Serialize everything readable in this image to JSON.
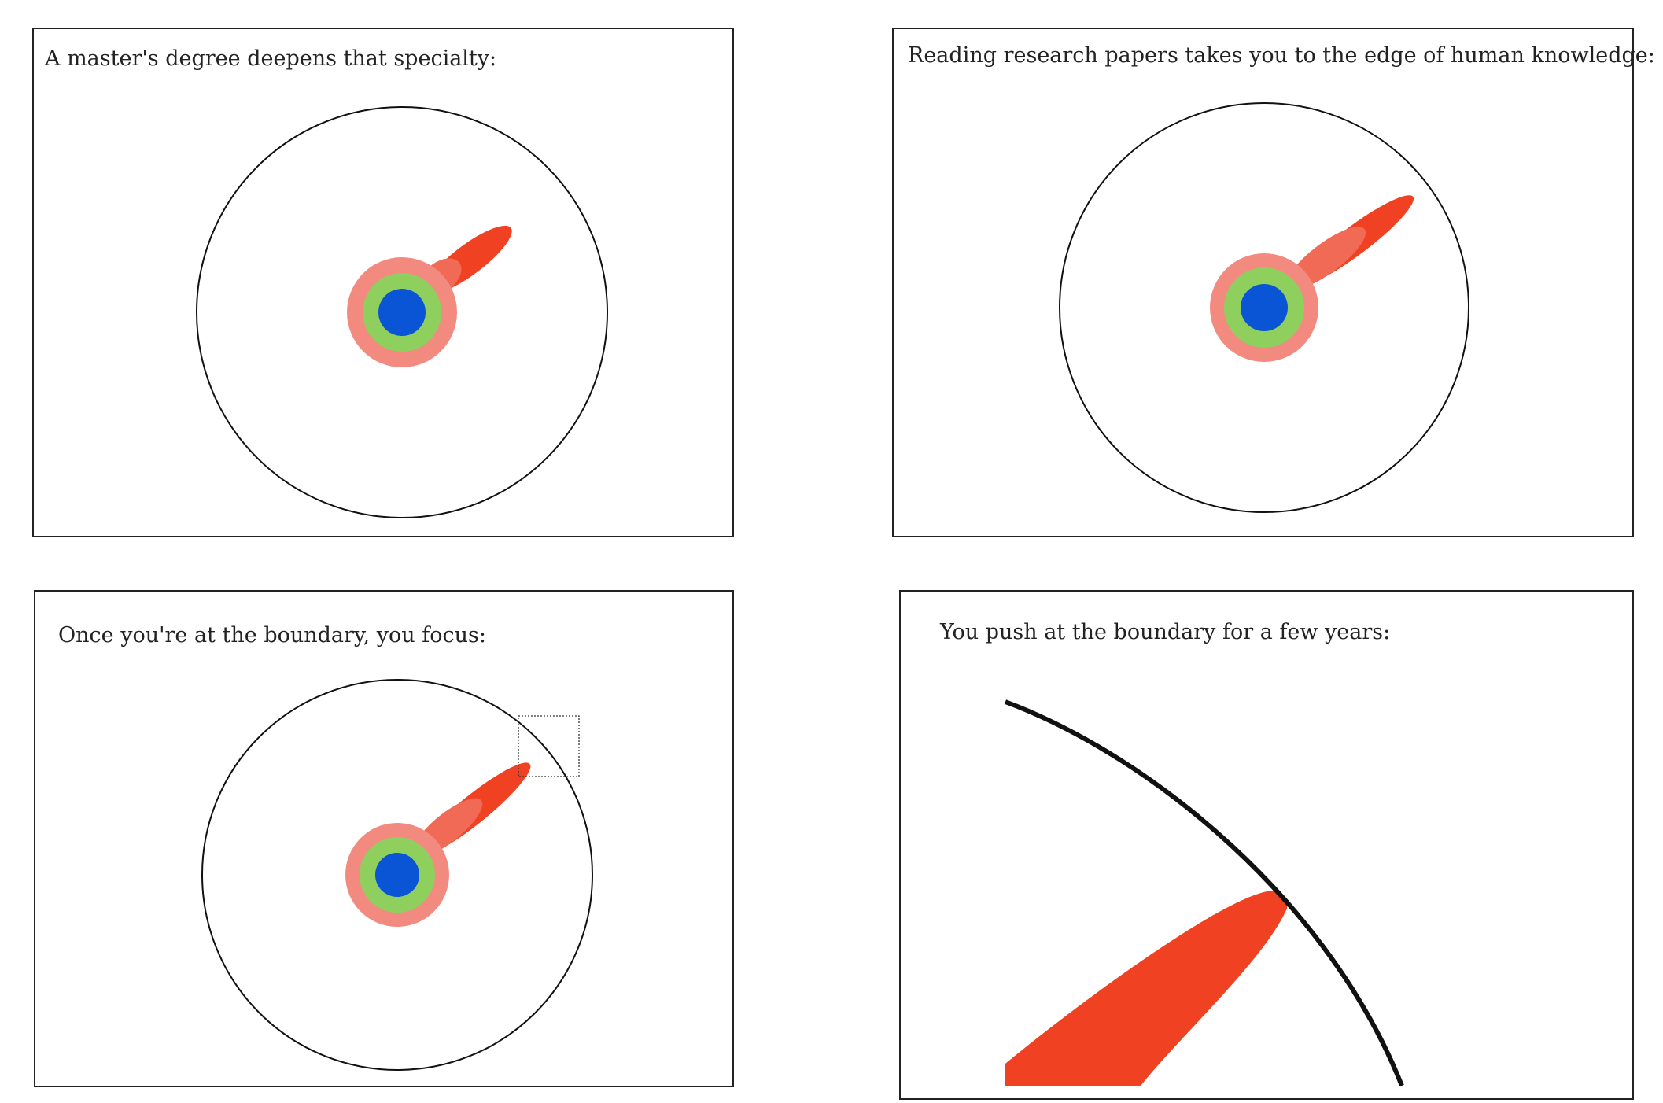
{
  "panels": [
    {
      "caption": "A master's degree deepens that specialty:"
    },
    {
      "caption": "Reading research papers takes you to the edge of human knowledge:"
    },
    {
      "caption": "Once you're at the boundary, you focus:"
    },
    {
      "caption": "You push at the boundary for a few years:"
    }
  ],
  "colors": {
    "core": "#0a54d6",
    "middle_ring": "#8fcf5e",
    "outer_ring": "#f28a80",
    "specialty_light": "#f06a55",
    "specialty_dark": "#f04222",
    "boundary": "#111111"
  }
}
